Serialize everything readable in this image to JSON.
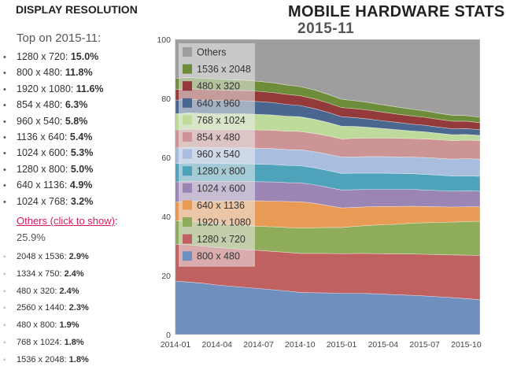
{
  "section_title": "DISPLAY RESOLUTION",
  "app_title": "MOBILE HARDWARE STATS",
  "app_subtitle": "2015-11",
  "top": {
    "heading": "Top on 2015-11:",
    "items": [
      {
        "label": "1280 x 720:",
        "value": "15.0%"
      },
      {
        "label": "800 x 480:",
        "value": "11.8%"
      },
      {
        "label": "1920 x 1080:",
        "value": "11.6%"
      },
      {
        "label": "854 x 480:",
        "value": "6.3%"
      },
      {
        "label": "960 x 540:",
        "value": "5.8%"
      },
      {
        "label": "1136 x 640:",
        "value": "5.4%"
      },
      {
        "label": "1024 x 600:",
        "value": "5.3%"
      },
      {
        "label": "1280 x 800:",
        "value": "5.0%"
      },
      {
        "label": "640 x 1136:",
        "value": "4.9%"
      },
      {
        "label": "1024 x 768:",
        "value": "3.2%"
      }
    ],
    "bullet": "•"
  },
  "others": {
    "link_text": "Others (click to show)",
    "suffix": ":",
    "value": "25.9%",
    "bullet": "◦",
    "items": [
      {
        "label": "2048 x 1536:",
        "value": "2.9%"
      },
      {
        "label": "1334 x 750:",
        "value": "2.4%"
      },
      {
        "label": "480 x 320:",
        "value": "2.4%"
      },
      {
        "label": "2560 x 1440:",
        "value": "2.3%"
      },
      {
        "label": "480 x 800:",
        "value": "1.9%"
      },
      {
        "label": "768 x 1024:",
        "value": "1.8%"
      },
      {
        "label": "1536 x 2048:",
        "value": "1.8%"
      }
    ]
  },
  "chart_data": {
    "type": "area",
    "stacked": true,
    "x": [
      "2014-01",
      "2014-02",
      "2014-03",
      "2014-04",
      "2014-05",
      "2014-06",
      "2014-07",
      "2014-08",
      "2014-09",
      "2014-10",
      "2014-11",
      "2014-12",
      "2015-01",
      "2015-02",
      "2015-03",
      "2015-04",
      "2015-05",
      "2015-06",
      "2015-07",
      "2015-08",
      "2015-09",
      "2015-10",
      "2015-11"
    ],
    "x_tick_labels": [
      "2014-01",
      "2014-04",
      "2014-07",
      "2014-10",
      "2015-01",
      "2015-04",
      "2015-07",
      "2015-10"
    ],
    "ylim": [
      0,
      100
    ],
    "y_ticks": [
      0,
      20,
      40,
      60,
      80,
      100
    ],
    "legend_position": "top-left",
    "series": [
      {
        "name": "800 x 480",
        "color": "#6f8fbf",
        "values": [
          18.1,
          17.8,
          17.4,
          16.8,
          16.4,
          16.0,
          15.6,
          15.2,
          14.8,
          14.3,
          14.2,
          14.1,
          14.0,
          14.0,
          13.9,
          13.7,
          13.5,
          13.3,
          13.1,
          12.8,
          12.5,
          12.2,
          11.8
        ]
      },
      {
        "name": "1280 x 720",
        "color": "#c06060",
        "values": [
          12.5,
          12.6,
          12.6,
          12.7,
          12.8,
          12.8,
          12.9,
          13.0,
          13.1,
          13.2,
          13.3,
          13.4,
          13.4,
          13.5,
          13.6,
          13.7,
          13.8,
          14.0,
          14.1,
          14.3,
          14.5,
          14.7,
          15.0
        ]
      },
      {
        "name": "1920 x 1080",
        "color": "#8fac5a",
        "values": [
          8.0,
          8.0,
          8.0,
          8.1,
          8.1,
          8.2,
          8.2,
          8.3,
          8.4,
          8.6,
          8.7,
          8.8,
          8.9,
          9.2,
          9.5,
          9.8,
          10.1,
          10.4,
          10.7,
          10.9,
          11.1,
          11.4,
          11.6
        ]
      },
      {
        "name": "640 x 1136",
        "color": "#e99a55",
        "values": [
          6.3,
          6.8,
          7.2,
          7.6,
          8.0,
          8.3,
          8.6,
          8.7,
          8.8,
          8.9,
          8.3,
          7.4,
          6.6,
          6.4,
          6.3,
          6.2,
          6.0,
          5.8,
          5.5,
          5.3,
          5.1,
          5.0,
          4.9
        ]
      },
      {
        "name": "1024 x 600",
        "color": "#9a85b5",
        "values": [
          6.8,
          6.8,
          6.7,
          6.7,
          6.6,
          6.6,
          6.5,
          6.5,
          6.4,
          6.4,
          6.3,
          6.2,
          6.1,
          6.0,
          5.9,
          5.8,
          5.8,
          5.7,
          5.6,
          5.5,
          5.4,
          5.4,
          5.3
        ]
      },
      {
        "name": "1280 x 800",
        "color": "#4ea3bb",
        "values": [
          6.2,
          6.2,
          6.1,
          6.1,
          6.0,
          6.0,
          5.9,
          5.9,
          5.8,
          5.8,
          5.7,
          5.7,
          5.6,
          5.6,
          5.5,
          5.5,
          5.4,
          5.3,
          5.3,
          5.2,
          5.1,
          5.1,
          5.0
        ]
      },
      {
        "name": "960 x 540",
        "color": "#a9bedf",
        "values": [
          5.3,
          5.3,
          5.3,
          5.3,
          5.3,
          5.4,
          5.4,
          5.4,
          5.4,
          5.4,
          5.5,
          5.5,
          5.5,
          5.5,
          5.6,
          5.6,
          5.6,
          5.6,
          5.7,
          5.7,
          5.7,
          5.8,
          5.8
        ]
      },
      {
        "name": "854 x 480",
        "color": "#cc9494",
        "values": [
          6.1,
          6.1,
          6.1,
          6.1,
          6.2,
          6.2,
          6.2,
          6.2,
          6.2,
          6.2,
          6.2,
          6.2,
          6.2,
          6.3,
          6.3,
          6.3,
          6.3,
          6.3,
          6.3,
          6.3,
          6.3,
          6.3,
          6.3
        ]
      },
      {
        "name": "768 x 1024",
        "color": "#bfdb9b",
        "values": [
          5.5,
          5.5,
          5.5,
          5.4,
          5.4,
          5.3,
          5.3,
          5.2,
          5.1,
          5.0,
          4.8,
          4.6,
          4.3,
          4.0,
          3.6,
          3.2,
          2.9,
          2.6,
          2.4,
          2.2,
          2.0,
          1.9,
          1.8
        ]
      },
      {
        "name": "640 x 960",
        "color": "#49678f",
        "values": [
          4.6,
          4.6,
          4.5,
          4.5,
          4.4,
          4.4,
          4.3,
          4.2,
          4.0,
          3.8,
          3.6,
          3.4,
          3.2,
          3.0,
          2.8,
          2.6,
          2.5,
          2.3,
          2.2,
          2.1,
          2.0,
          2.0,
          1.9
        ]
      },
      {
        "name": "480 x 320",
        "color": "#943a3a",
        "values": [
          3.6,
          3.6,
          3.6,
          3.6,
          3.5,
          3.5,
          3.5,
          3.4,
          3.4,
          3.3,
          3.3,
          3.2,
          3.1,
          3.0,
          3.0,
          2.9,
          2.8,
          2.8,
          2.7,
          2.6,
          2.6,
          2.5,
          2.4
        ]
      },
      {
        "name": "1536 x 2048",
        "color": "#6e8d3b",
        "values": [
          3.8,
          3.8,
          3.8,
          3.7,
          3.6,
          3.5,
          3.4,
          3.3,
          3.2,
          3.1,
          3.0,
          2.9,
          2.8,
          2.7,
          2.6,
          2.5,
          2.4,
          2.3,
          2.2,
          2.1,
          2.0,
          1.9,
          1.8
        ]
      },
      {
        "name": "Others",
        "color": "#9e9e9e",
        "values": [
          13.2,
          12.9,
          13.2,
          13.4,
          13.7,
          13.8,
          14.2,
          14.7,
          15.4,
          16.0,
          17.2,
          18.6,
          20.3,
          20.8,
          21.4,
          22.2,
          23.1,
          24.1,
          25.2,
          26.3,
          27.7,
          27.8,
          28.4
        ]
      }
    ]
  },
  "colors": {
    "link": "#d81b60",
    "plot_background": "#e5e5e5",
    "others_area": "#9e9e9e"
  }
}
